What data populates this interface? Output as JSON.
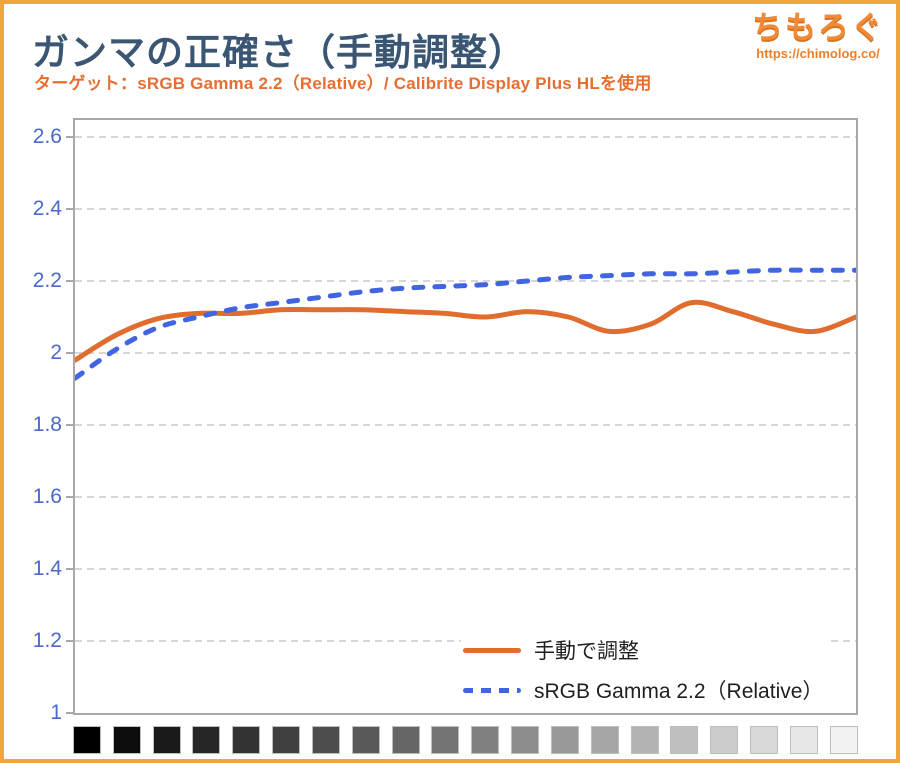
{
  "header": {
    "title": "ガンマの正確さ（手動調整）",
    "subtitle": "ターゲット：sRGB Gamma 2.2（Relative）/ Calibrite Display Plus HLを使用",
    "logo": {
      "text": "ちもろぐ",
      "url": "https://chimolog.co/"
    }
  },
  "chart_data": {
    "type": "line",
    "title": "ガンマの正確さ（手動調整）",
    "x": [
      1,
      2,
      3,
      4,
      5,
      6,
      7,
      8,
      9,
      10,
      11,
      12,
      13,
      14,
      15,
      16,
      17,
      18,
      19,
      20
    ],
    "series": [
      {
        "name": "手動で調整",
        "color": "#E06C2E",
        "line_style": "solid",
        "values": [
          1.98,
          2.05,
          2.095,
          2.11,
          2.11,
          2.12,
          2.12,
          2.12,
          2.115,
          2.11,
          2.1,
          2.115,
          2.1,
          2.06,
          2.08,
          2.14,
          2.115,
          2.08,
          2.06,
          2.1
        ]
      },
      {
        "name": "sRGB Gamma 2.2（Relative）",
        "color": "#4164E1",
        "line_style": "dashed",
        "values": [
          1.93,
          2.01,
          2.07,
          2.1,
          2.125,
          2.14,
          2.155,
          2.17,
          2.18,
          2.185,
          2.19,
          2.2,
          2.21,
          2.215,
          2.22,
          2.22,
          2.225,
          2.23,
          2.23,
          2.23
        ]
      }
    ],
    "ylim": [
      1,
      2.65
    ],
    "yticks": [
      {
        "label": "2.6",
        "value": 2.6
      },
      {
        "label": "2.4",
        "value": 2.4
      },
      {
        "label": "2.2",
        "value": 2.2
      },
      {
        "label": "2",
        "value": 2.0
      },
      {
        "label": "1.8",
        "value": 1.8
      },
      {
        "label": "1.6",
        "value": 1.6
      },
      {
        "label": "1.4",
        "value": 1.4
      },
      {
        "label": "1.2",
        "value": 1.2
      },
      {
        "label": "1",
        "value": 1.0
      }
    ],
    "grid": "horizontal-dashed",
    "legend_position": "inside-bottom-right",
    "x_axis_swatches": [
      "#000000",
      "#0D0D0D",
      "#1A1A1A",
      "#262626",
      "#333333",
      "#404040",
      "#4D4D4D",
      "#595959",
      "#666666",
      "#737373",
      "#808080",
      "#8C8C8C",
      "#999999",
      "#A6A6A6",
      "#B3B3B3",
      "#BFBFBF",
      "#CCCCCC",
      "#D9D9D9",
      "#E6E6E6",
      "#F2F2F2"
    ]
  },
  "theme": {
    "frame_color": "#F2A53C",
    "title_color": "#3A5673",
    "subtitle_color": "#E56E31",
    "axis_label_color": "#4A69C8",
    "gridline_color": "#C9C9C9",
    "plot_border_color": "#A8A8A8",
    "legend_text_color": "#1F1F1F"
  }
}
